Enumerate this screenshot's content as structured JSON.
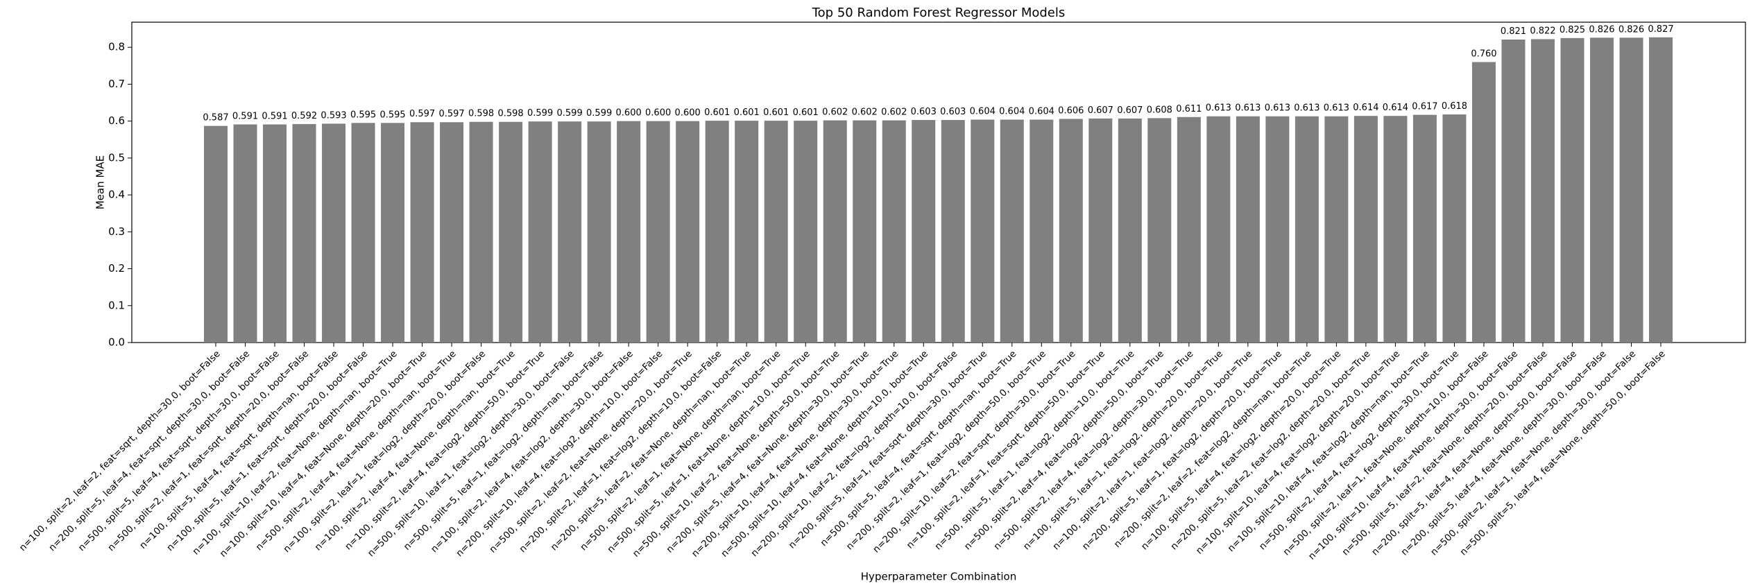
{
  "chart_data": {
    "type": "bar",
    "title": "Top 50 Random Forest Regressor Models",
    "x_label": "Hyperparameter Combination",
    "y_label": "Mean MAE",
    "color": "#808080",
    "categories": [
      "n=100, split=2, leaf=2, feat=sqrt, depth=30.0, boot=False",
      "n=200, split=5, leaf=4, feat=sqrt, depth=30.0, boot=False",
      "n=500, split=5, leaf=4, feat=sqrt, depth=30.0, boot=False",
      "n=500, split=2, leaf=1, feat=sqrt, depth=20.0, boot=False",
      "n=100, split=5, leaf=4, feat=sqrt, depth=nan, boot=False",
      "n=100, split=5, leaf=1, feat=sqrt, depth=20.0, boot=False",
      "n=100, split=10, leaf=2, feat=None, depth=nan, boot=True",
      "n=100, split=10, leaf=4, feat=None, depth=20.0, boot=True",
      "n=500, split=2, leaf=4, feat=None, depth=nan, boot=True",
      "n=100, split=2, leaf=1, feat=log2, depth=20.0, boot=False",
      "n=100, split=2, leaf=4, feat=None, depth=nan, boot=True",
      "n=100, split=2, leaf=4, feat=log2, depth=50.0, boot=True",
      "n=500, split=10, leaf=1, feat=log2, depth=30.0, boot=False",
      "n=500, split=5, leaf=1, feat=log2, depth=nan, boot=False",
      "n=100, split=2, leaf=4, feat=log2, depth=30.0, boot=False",
      "n=200, split=10, leaf=4, feat=log2, depth=10.0, boot=False",
      "n=500, split=2, leaf=2, feat=None, depth=20.0, boot=True",
      "n=200, split=2, leaf=1, feat=log2, depth=10.0, boot=False",
      "n=200, split=5, leaf=2, feat=None, depth=nan, boot=True",
      "n=500, split=2, leaf=1, feat=None, depth=nan, boot=True",
      "n=500, split=5, leaf=1, feat=None, depth=10.0, boot=True",
      "n=500, split=10, leaf=2, feat=None, depth=50.0, boot=True",
      "n=200, split=5, leaf=4, feat=None, depth=30.0, boot=True",
      "n=200, split=10, leaf=4, feat=None, depth=30.0, boot=True",
      "n=500, split=10, leaf=4, feat=None, depth=10.0, boot=True",
      "n=200, split=10, leaf=2, feat=log2, depth=10.0, boot=False",
      "n=200, split=5, leaf=1, feat=sqrt, depth=30.0, boot=True",
      "n=500, split=5, leaf=4, feat=sqrt, depth=nan, boot=True",
      "n=200, split=2, leaf=1, feat=log2, depth=50.0, boot=True",
      "n=200, split=10, leaf=2, feat=sqrt, depth=30.0, boot=True",
      "n=100, split=2, leaf=1, feat=sqrt, depth=50.0, boot=True",
      "n=500, split=5, leaf=1, feat=log2, depth=10.0, boot=True",
      "n=500, split=2, leaf=4, feat=log2, depth=50.0, boot=True",
      "n=500, split=2, leaf=4, feat=log2, depth=30.0, boot=True",
      "n=100, split=5, leaf=1, feat=log2, depth=20.0, boot=True",
      "n=100, split=2, leaf=1, feat=log2, depth=20.0, boot=True",
      "n=200, split=5, leaf=1, feat=log2, depth=20.0, boot=True",
      "n=200, split=2, leaf=2, feat=log2, depth=nan, boot=True",
      "n=100, split=5, leaf=4, feat=log2, depth=20.0, boot=True",
      "n=200, split=5, leaf=2, feat=log2, depth=20.0, boot=True",
      "n=100, split=10, leaf=4, feat=log2, depth=20.0, boot=True",
      "n=100, split=10, leaf=4, feat=log2, depth=nan, boot=True",
      "n=500, split=2, leaf=4, feat=log2, depth=30.0, boot=True",
      "n=500, split=2, leaf=1, feat=None, depth=10.0, boot=False",
      "n=100, split=10, leaf=4, feat=None, depth=30.0, boot=False",
      "n=500, split=5, leaf=2, feat=None, depth=20.0, boot=False",
      "n=200, split=5, leaf=4, feat=None, depth=50.0, boot=False",
      "n=200, split=5, leaf=4, feat=None, depth=30.0, boot=False",
      "n=500, split=2, leaf=1, feat=None, depth=30.0, boot=False",
      "n=500, split=5, leaf=4, feat=None, depth=50.0, boot=False"
    ],
    "values": [
      0.587,
      0.591,
      0.591,
      0.592,
      0.593,
      0.595,
      0.595,
      0.597,
      0.597,
      0.598,
      0.598,
      0.599,
      0.599,
      0.599,
      0.6,
      0.6,
      0.6,
      0.601,
      0.601,
      0.601,
      0.601,
      0.602,
      0.602,
      0.602,
      0.603,
      0.603,
      0.604,
      0.604,
      0.604,
      0.606,
      0.607,
      0.607,
      0.608,
      0.611,
      0.613,
      0.613,
      0.613,
      0.613,
      0.613,
      0.614,
      0.614,
      0.617,
      0.618,
      0.76,
      0.821,
      0.822,
      0.825,
      0.826,
      0.826,
      0.827
    ],
    "value_labels": [
      "0.587",
      "0.591",
      "0.591",
      "0.592",
      "0.593",
      "0.595",
      "0.595",
      "0.597",
      "0.597",
      "0.598",
      "0.598",
      "0.599",
      "0.599",
      "0.599",
      "0.600",
      "0.600",
      "0.600",
      "0.601",
      "0.601",
      "0.601",
      "0.601",
      "0.602",
      "0.602",
      "0.602",
      "0.603",
      "0.603",
      "0.604",
      "0.604",
      "0.604",
      "0.606",
      "0.607",
      "0.607",
      "0.608",
      "0.611",
      "0.613",
      "0.613",
      "0.613",
      "0.613",
      "0.613",
      "0.614",
      "0.614",
      "0.617",
      "0.618",
      "0.760",
      "0.821",
      "0.822",
      "0.825",
      "0.826",
      "0.826",
      "0.827"
    ],
    "ylim": [
      0,
      0.868
    ],
    "yticks": [
      {
        "value": 0,
        "label": "0.0"
      },
      {
        "value": 0.1,
        "label": "0.1"
      },
      {
        "value": 0.2,
        "label": "0.2"
      },
      {
        "value": 0.3,
        "label": "0.3"
      },
      {
        "value": 0.4,
        "label": "0.4"
      },
      {
        "value": 0.5,
        "label": "0.5"
      },
      {
        "value": 0.6,
        "label": "0.6"
      },
      {
        "value": 0.7,
        "label": "0.7"
      },
      {
        "value": 0.8,
        "label": "0.8"
      }
    ]
  }
}
